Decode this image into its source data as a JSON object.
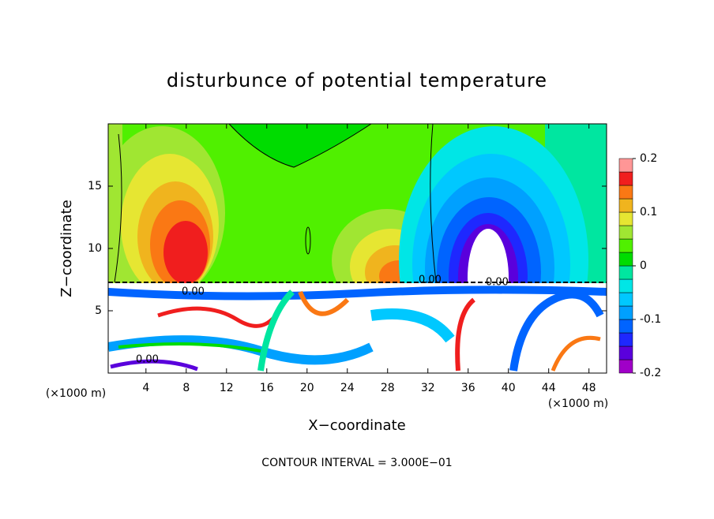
{
  "chart_data": {
    "type": "contour",
    "title": "disturbunce of potential temperature",
    "x_label": "X−coordinate",
    "y_label": "Z−coordinate",
    "x_unit": "(×1000 m)",
    "annotation": "CONTOUR INTERVAL = 3.000E−01",
    "contour_label": "0.00",
    "xlim": [
      0.25,
      49.75
    ],
    "xticks": [
      4,
      8,
      12,
      16,
      20,
      24,
      28,
      32,
      36,
      40,
      44,
      48
    ],
    "ylim": [
      0,
      20
    ],
    "yticks": [
      5,
      10,
      15
    ],
    "colorbar": {
      "levels": [
        -0.2,
        -0.175,
        -0.15,
        -0.125,
        -0.1,
        -0.075,
        -0.05,
        -0.025,
        0,
        0.025,
        0.05,
        0.075,
        0.1,
        0.125,
        0.15,
        0.175,
        0.2
      ],
      "colors": [
        "#a000c8",
        "#5a00dc",
        "#1e28ff",
        "#0064ff",
        "#00a0ff",
        "#00c8ff",
        "#00e6e6",
        "#00e6a0",
        "#00dc00",
        "#50f000",
        "#a0e632",
        "#e6e632",
        "#f0b41e",
        "#fa7814",
        "#f01e1e",
        "#ff9696"
      ],
      "ticks": [
        -0.2,
        -0.1,
        0,
        0.1,
        0.2
      ]
    }
  }
}
